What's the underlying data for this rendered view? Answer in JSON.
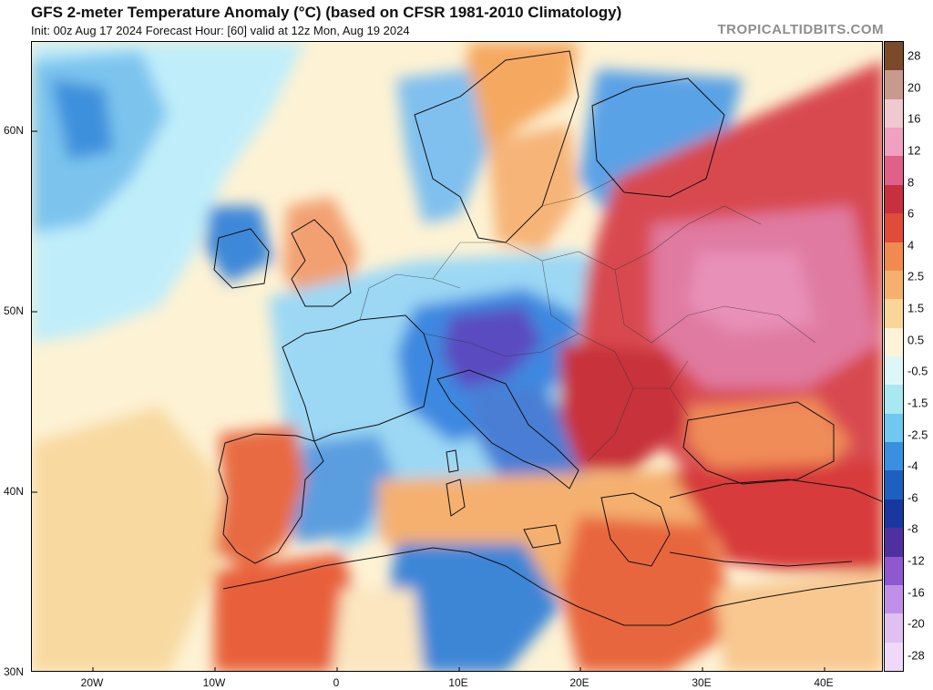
{
  "header": {
    "title": "GFS 2-meter Temperature Anomaly (°C) (based on CFSR 1981-2010 Climatology)",
    "subtitle": "Init: 00z Aug 17 2024   Forecast Hour: [60]   valid at 12z Mon, Aug 19 2024",
    "brand": "TROPICALTIDBITS.COM"
  },
  "axes": {
    "latitude": [
      "60N",
      "50N",
      "40N",
      "30N"
    ],
    "longitude": [
      "20W",
      "10W",
      "0",
      "10E",
      "20E",
      "30E",
      "40E"
    ]
  },
  "colorbar": {
    "labels": [
      "28",
      "20",
      "16",
      "12",
      "8",
      "6",
      "4",
      "2.5",
      "1.5",
      "0.5",
      "-0.5",
      "-1.5",
      "-2.5",
      "-4",
      "-6",
      "-8",
      "-12",
      "-16",
      "-20",
      "-28"
    ],
    "colors": [
      "#7a4a2a",
      "#c89a8e",
      "#f0c8d0",
      "#f0a0c0",
      "#e0608a",
      "#c83040",
      "#e04b3a",
      "#f08a50",
      "#f5b070",
      "#f9d59a",
      "#fdf3d8",
      "#dff6f8",
      "#a8e8f0",
      "#70c8f0",
      "#3a90e0",
      "#1e5fc0",
      "#1838a0",
      "#5030a0",
      "#9058d0",
      "#c090e8",
      "#e0c0f0",
      "#f0d8f8"
    ]
  },
  "colors": {
    "ocean_neutral": "#fbf6e6",
    "warm_orange": "#f08a50",
    "hot_red": "#d8353a",
    "hot_pink": "#e0709a",
    "cool_light": "#a8e8f0",
    "cool_blue": "#3a90e0",
    "cold_purple": "#6048b8"
  }
}
